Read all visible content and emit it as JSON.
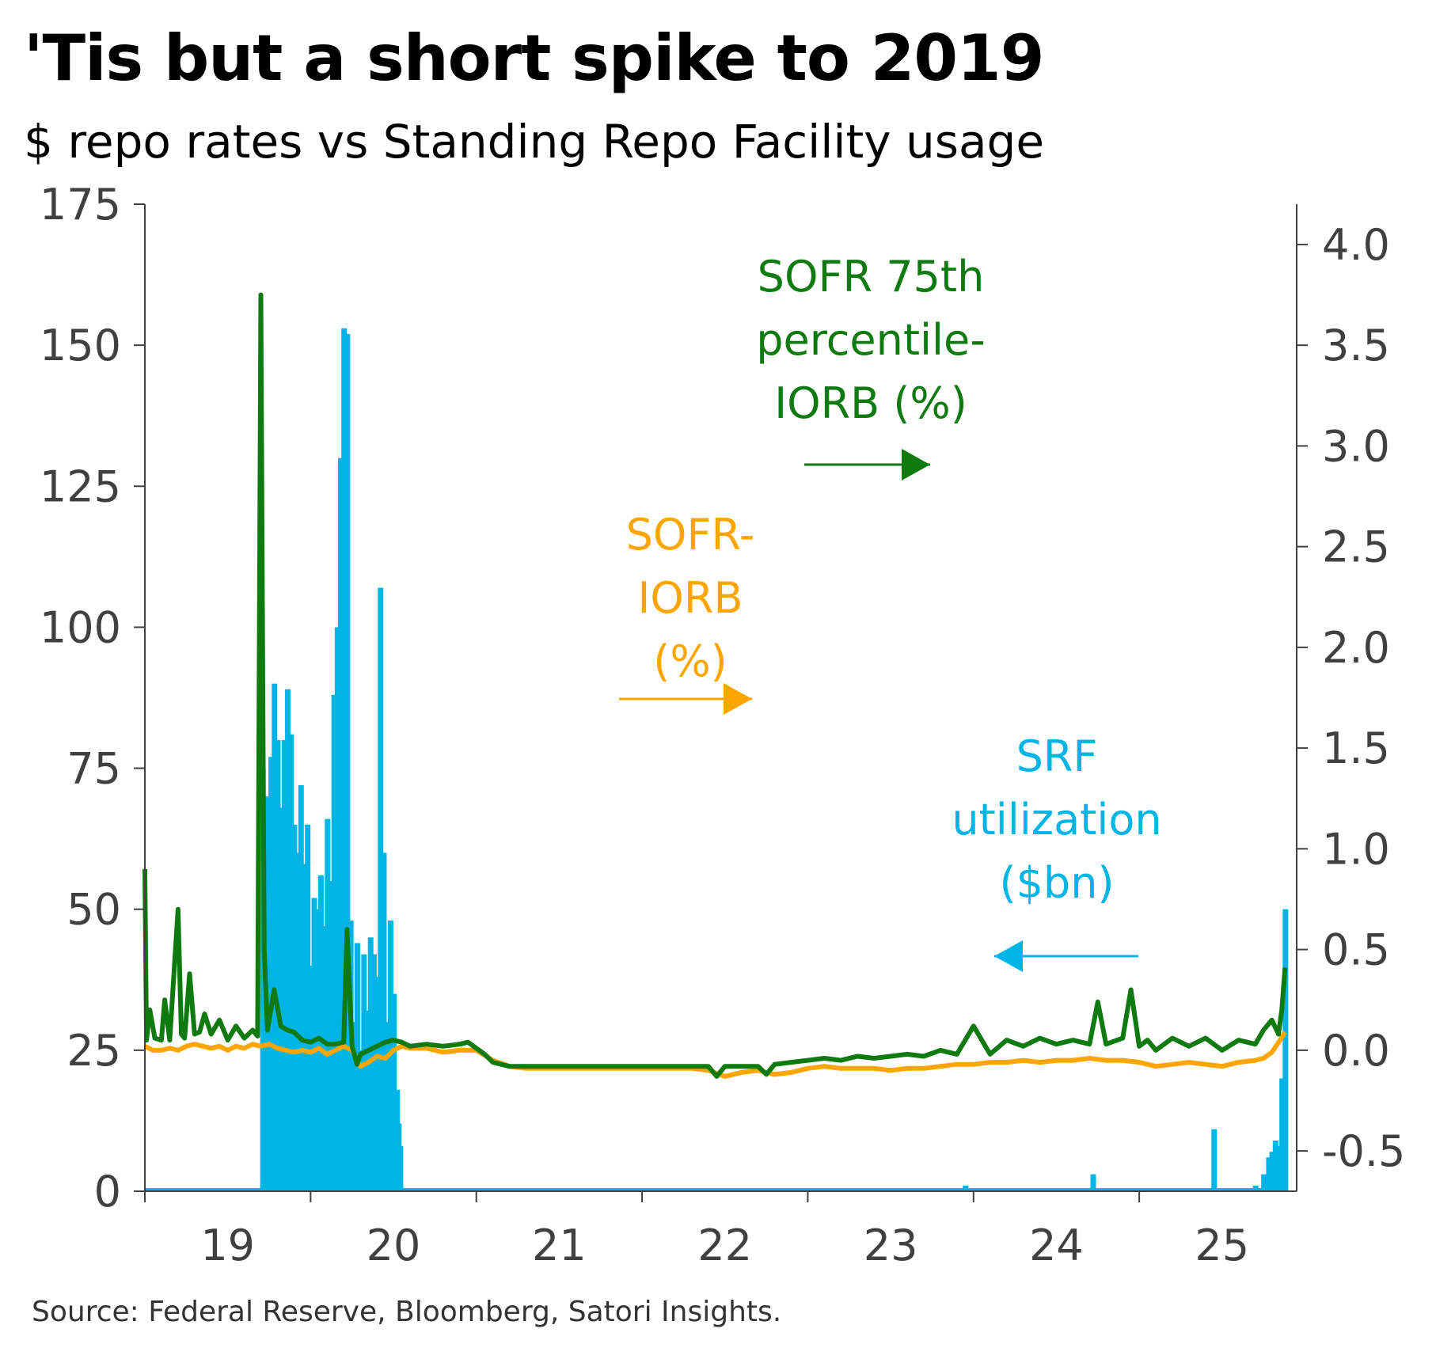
{
  "title": "'Tis but a short spike to 2019",
  "subtitle": "$ repo rates vs Standing Repo Facility usage",
  "source": "Source: Federal Reserve, Bloomberg, Satori Insights.",
  "colors": {
    "sofr_75th_iorb": "#0f7a0f",
    "sofr_iorb": "#ffa500",
    "srf": "#00b4e6",
    "axis": "#404040"
  },
  "annotations": {
    "sofr75": [
      "SOFR 75th",
      "percentile-",
      "IORB (%)"
    ],
    "sofr": [
      "SOFR-",
      "IORB",
      "(%)"
    ],
    "srf": [
      "SRF",
      "utilization",
      "($bn)"
    ]
  },
  "chart_data": {
    "type": "line",
    "x_axis": {
      "ticks": [
        "19",
        "20",
        "21",
        "22",
        "23",
        "24",
        "25"
      ],
      "range": [
        2019.0,
        2025.95
      ]
    },
    "y_left": {
      "label": "",
      "ticks": [
        "0",
        "25",
        "50",
        "75",
        "100",
        "125",
        "150",
        "175"
      ],
      "range": [
        0,
        175
      ]
    },
    "y_right": {
      "label": "",
      "ticks": [
        "-0.5",
        "0.0",
        "0.5",
        "1.0",
        "1.5",
        "2.0",
        "2.5",
        "3.0",
        "3.5",
        "4.0"
      ],
      "range": [
        -0.7,
        4.2
      ]
    },
    "series": [
      {
        "name": "SRF utilization ($bn)",
        "axis": "left",
        "style": "bar",
        "x": [
          2019.7,
          2019.71,
          2019.72,
          2019.73,
          2019.74,
          2019.76,
          2019.78,
          2019.8,
          2019.82,
          2019.84,
          2019.86,
          2019.88,
          2019.9,
          2019.92,
          2019.94,
          2019.96,
          2019.98,
          2020.0,
          2020.02,
          2020.04,
          2020.06,
          2020.08,
          2020.1,
          2020.12,
          2020.14,
          2020.16,
          2020.18,
          2020.2,
          2020.22,
          2020.24,
          2020.26,
          2020.28,
          2020.3,
          2020.32,
          2020.34,
          2020.36,
          2020.38,
          2020.4,
          2020.42,
          2020.44,
          2020.46,
          2020.48,
          2020.5,
          2020.52,
          2020.53,
          2020.54,
          2020.56,
          2023.95,
          2024.72,
          2025.45,
          2025.7,
          2025.75,
          2025.78,
          2025.8,
          2025.82,
          2025.84,
          2025.86,
          2025.88
        ],
        "values": [
          0,
          75,
          62,
          70,
          60,
          77,
          90,
          80,
          68,
          80,
          89,
          81,
          65,
          60,
          72,
          58,
          65,
          40,
          52,
          50,
          56,
          47,
          66,
          55,
          88,
          100,
          130,
          153,
          152,
          48,
          30,
          44,
          25,
          42,
          32,
          45,
          42,
          38,
          107,
          60,
          30,
          48,
          35,
          18,
          12,
          8,
          0,
          1,
          3,
          11,
          1,
          3,
          6,
          7,
          9,
          8,
          20,
          50
        ]
      },
      {
        "name": "SOFR-IORB (%)",
        "axis": "right",
        "style": "line",
        "x": [
          2019.0,
          2019.05,
          2019.1,
          2019.15,
          2019.2,
          2019.25,
          2019.3,
          2019.35,
          2019.4,
          2019.45,
          2019.5,
          2019.55,
          2019.6,
          2019.65,
          2019.7,
          2019.75,
          2019.8,
          2019.85,
          2019.9,
          2019.95,
          2020.0,
          2020.05,
          2020.1,
          2020.15,
          2020.2,
          2020.25,
          2020.3,
          2020.35,
          2020.4,
          2020.45,
          2020.5,
          2020.55,
          2020.6,
          2020.7,
          2020.8,
          2020.9,
          2021.0,
          2021.1,
          2021.2,
          2021.3,
          2021.4,
          2021.5,
          2021.6,
          2021.7,
          2021.8,
          2021.9,
          2022.0,
          2022.1,
          2022.2,
          2022.3,
          2022.4,
          2022.5,
          2022.6,
          2022.7,
          2022.8,
          2022.9,
          2023.0,
          2023.1,
          2023.2,
          2023.3,
          2023.4,
          2023.5,
          2023.6,
          2023.7,
          2023.8,
          2023.9,
          2024.0,
          2024.1,
          2024.2,
          2024.3,
          2024.4,
          2024.5,
          2024.6,
          2024.7,
          2024.8,
          2024.9,
          2025.0,
          2025.1,
          2025.2,
          2025.3,
          2025.4,
          2025.5,
          2025.6,
          2025.7,
          2025.75,
          2025.8,
          2025.85,
          2025.88
        ],
        "values": [
          0.02,
          0.0,
          0.0,
          0.01,
          0.0,
          0.02,
          0.03,
          0.02,
          0.01,
          0.02,
          0.0,
          0.02,
          0.01,
          0.03,
          0.02,
          0.03,
          0.01,
          0.0,
          -0.01,
          0.0,
          -0.01,
          0.01,
          -0.02,
          0.0,
          0.02,
          0.0,
          -0.08,
          -0.06,
          -0.03,
          -0.04,
          0.0,
          0.02,
          0.01,
          0.01,
          -0.01,
          0.0,
          0.0,
          -0.05,
          -0.08,
          -0.09,
          -0.09,
          -0.09,
          -0.09,
          -0.09,
          -0.09,
          -0.09,
          -0.09,
          -0.09,
          -0.09,
          -0.09,
          -0.1,
          -0.13,
          -0.11,
          -0.1,
          -0.12,
          -0.11,
          -0.09,
          -0.08,
          -0.09,
          -0.09,
          -0.09,
          -0.1,
          -0.09,
          -0.09,
          -0.08,
          -0.07,
          -0.07,
          -0.06,
          -0.06,
          -0.05,
          -0.06,
          -0.05,
          -0.05,
          -0.04,
          -0.05,
          -0.05,
          -0.06,
          -0.08,
          -0.07,
          -0.06,
          -0.07,
          -0.08,
          -0.06,
          -0.05,
          -0.04,
          -0.01,
          0.05,
          0.09
        ]
      },
      {
        "name": "SOFR 75th percentile-IORB (%)",
        "axis": "right",
        "style": "line",
        "x": [
          2019.0,
          2019.01,
          2019.03,
          2019.06,
          2019.1,
          2019.12,
          2019.15,
          2019.2,
          2019.22,
          2019.24,
          2019.27,
          2019.3,
          2019.33,
          2019.36,
          2019.4,
          2019.45,
          2019.5,
          2019.55,
          2019.6,
          2019.65,
          2019.68,
          2019.7,
          2019.72,
          2019.74,
          2019.78,
          2019.82,
          2019.86,
          2019.9,
          2019.95,
          2020.0,
          2020.05,
          2020.1,
          2020.15,
          2020.2,
          2020.22,
          2020.25,
          2020.28,
          2020.3,
          2020.35,
          2020.4,
          2020.45,
          2020.5,
          2020.55,
          2020.6,
          2020.7,
          2020.8,
          2020.9,
          2020.95,
          2021.0,
          2021.05,
          2021.1,
          2021.2,
          2021.3,
          2021.4,
          2021.5,
          2021.6,
          2021.7,
          2021.8,
          2021.9,
          2022.0,
          2022.1,
          2022.2,
          2022.3,
          2022.4,
          2022.45,
          2022.5,
          2022.6,
          2022.7,
          2022.75,
          2022.8,
          2022.9,
          2023.0,
          2023.1,
          2023.2,
          2023.3,
          2023.4,
          2023.5,
          2023.6,
          2023.7,
          2023.8,
          2023.9,
          2024.0,
          2024.1,
          2024.2,
          2024.3,
          2024.4,
          2024.5,
          2024.6,
          2024.7,
          2024.75,
          2024.8,
          2024.9,
          2024.95,
          2025.0,
          2025.05,
          2025.1,
          2025.2,
          2025.3,
          2025.4,
          2025.5,
          2025.6,
          2025.7,
          2025.75,
          2025.8,
          2025.84,
          2025.86,
          2025.88
        ],
        "values": [
          0.9,
          0.05,
          0.2,
          0.06,
          0.05,
          0.25,
          0.05,
          0.7,
          0.08,
          0.06,
          0.38,
          0.08,
          0.09,
          0.18,
          0.08,
          0.15,
          0.05,
          0.12,
          0.06,
          0.1,
          0.07,
          3.75,
          0.5,
          0.1,
          0.3,
          0.12,
          0.1,
          0.09,
          0.05,
          0.04,
          0.06,
          0.03,
          0.03,
          0.04,
          0.6,
          0.02,
          -0.07,
          -0.02,
          0.0,
          0.02,
          0.04,
          0.05,
          0.04,
          0.02,
          0.03,
          0.02,
          0.03,
          0.04,
          0.01,
          -0.02,
          -0.06,
          -0.08,
          -0.08,
          -0.08,
          -0.08,
          -0.08,
          -0.08,
          -0.08,
          -0.08,
          -0.08,
          -0.08,
          -0.08,
          -0.08,
          -0.08,
          -0.13,
          -0.08,
          -0.08,
          -0.08,
          -0.12,
          -0.07,
          -0.06,
          -0.05,
          -0.04,
          -0.05,
          -0.03,
          -0.04,
          -0.03,
          -0.02,
          -0.03,
          0.0,
          -0.02,
          0.12,
          -0.02,
          0.05,
          0.02,
          0.06,
          0.03,
          0.05,
          0.03,
          0.24,
          0.03,
          0.06,
          0.3,
          0.02,
          0.05,
          0.0,
          0.06,
          0.02,
          0.06,
          0.0,
          0.05,
          0.03,
          0.1,
          0.15,
          0.08,
          0.2,
          0.41
        ]
      }
    ]
  }
}
